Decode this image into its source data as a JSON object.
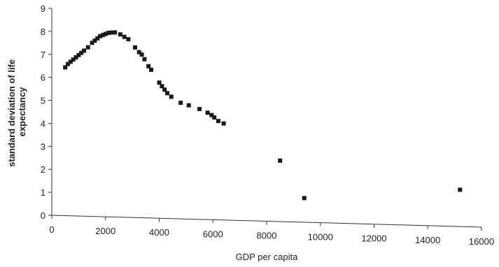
{
  "chart_data": {
    "type": "scatter",
    "title": "",
    "xlabel": "GDP per capita",
    "ylabel_lines": [
      "standard deviation of life",
      "expectancy"
    ],
    "xlim": [
      0,
      16000
    ],
    "ylim": [
      0,
      9
    ],
    "xticks": [
      0,
      2000,
      4000,
      6000,
      8000,
      10000,
      12000,
      14000,
      16000
    ],
    "yticks": [
      0,
      1,
      2,
      3,
      4,
      5,
      6,
      7,
      8,
      9
    ],
    "grid": false,
    "legend": "none",
    "marker_color": "#1a1a1a",
    "points": [
      [
        500,
        6.45
      ],
      [
        600,
        6.6
      ],
      [
        700,
        6.7
      ],
      [
        800,
        6.8
      ],
      [
        900,
        6.9
      ],
      [
        1000,
        7.0
      ],
      [
        1100,
        7.1
      ],
      [
        1200,
        7.2
      ],
      [
        1350,
        7.35
      ],
      [
        1500,
        7.55
      ],
      [
        1600,
        7.65
      ],
      [
        1700,
        7.75
      ],
      [
        1800,
        7.85
      ],
      [
        1900,
        7.9
      ],
      [
        2000,
        7.95
      ],
      [
        2100,
        8.0
      ],
      [
        2200,
        8.02
      ],
      [
        2350,
        8.03
      ],
      [
        2550,
        7.95
      ],
      [
        2700,
        7.85
      ],
      [
        2850,
        7.75
      ],
      [
        3100,
        7.4
      ],
      [
        3250,
        7.2
      ],
      [
        3350,
        7.1
      ],
      [
        3450,
        6.9
      ],
      [
        3600,
        6.6
      ],
      [
        3700,
        6.45
      ],
      [
        4000,
        5.9
      ],
      [
        4100,
        5.75
      ],
      [
        4200,
        5.6
      ],
      [
        4300,
        5.45
      ],
      [
        4450,
        5.3
      ],
      [
        4800,
        5.05
      ],
      [
        5100,
        4.95
      ],
      [
        5500,
        4.8
      ],
      [
        5800,
        4.65
      ],
      [
        5950,
        4.55
      ],
      [
        6050,
        4.45
      ],
      [
        6200,
        4.3
      ],
      [
        6400,
        4.2
      ],
      [
        8500,
        2.65
      ],
      [
        9400,
        1.05
      ],
      [
        15200,
        1.6
      ]
    ]
  }
}
